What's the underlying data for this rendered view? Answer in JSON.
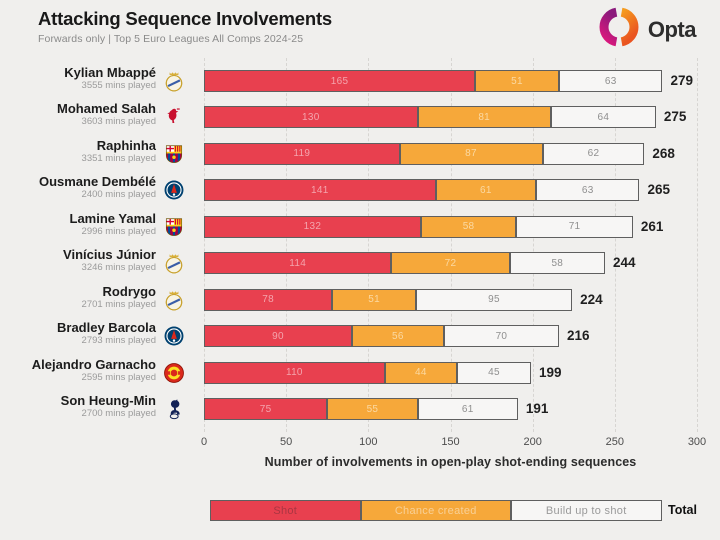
{
  "header": {
    "title": "Attacking Sequence Involvements",
    "subtitle": "Forwards only | Top 5 Euro Leagues All Comps 2024-25",
    "brand": "Opta"
  },
  "chart_data": {
    "type": "bar",
    "stacked": true,
    "orientation": "horizontal",
    "title": "Attacking Sequence Involvements",
    "subtitle": "Forwards only | Top 5 Euro Leagues All Comps 2024-25",
    "xlabel": "Number of involvements in open-play shot-ending sequences",
    "xlim": [
      0,
      300
    ],
    "x_ticks": [
      0,
      50,
      100,
      150,
      200,
      250,
      300
    ],
    "grid": "vertical-dashed",
    "series_names": [
      "Shot",
      "Chance created",
      "Build up to shot"
    ],
    "players": [
      {
        "name": "Kylian Mbappé",
        "mins": "3555 mins played",
        "club": "real-madrid",
        "shot": 165,
        "chance": 51,
        "build": 63,
        "total": 279
      },
      {
        "name": "Mohamed Salah",
        "mins": "3603 mins played",
        "club": "liverpool",
        "shot": 130,
        "chance": 81,
        "build": 64,
        "total": 275
      },
      {
        "name": "Raphinha",
        "mins": "3351 mins played",
        "club": "barcelona",
        "shot": 119,
        "chance": 87,
        "build": 62,
        "total": 268
      },
      {
        "name": "Ousmane Dembélé",
        "mins": "2400 mins played",
        "club": "psg",
        "shot": 141,
        "chance": 61,
        "build": 63,
        "total": 265
      },
      {
        "name": "Lamine Yamal",
        "mins": "2996 mins played",
        "club": "barcelona",
        "shot": 132,
        "chance": 58,
        "build": 71,
        "total": 261
      },
      {
        "name": "Vinícius Júnior",
        "mins": "3246 mins played",
        "club": "real-madrid",
        "shot": 114,
        "chance": 72,
        "build": 58,
        "total": 244
      },
      {
        "name": "Rodrygo",
        "mins": "2701 mins played",
        "club": "real-madrid",
        "shot": 78,
        "chance": 51,
        "build": 95,
        "total": 224
      },
      {
        "name": "Bradley Barcola",
        "mins": "2793 mins played",
        "club": "psg",
        "shot": 90,
        "chance": 56,
        "build": 70,
        "total": 216
      },
      {
        "name": "Alejandro Garnacho",
        "mins": "2595 mins played",
        "club": "man-united",
        "shot": 110,
        "chance": 44,
        "build": 45,
        "total": 199
      },
      {
        "name": "Son Heung-Min",
        "mins": "2700 mins played",
        "club": "tottenham",
        "shot": 75,
        "chance": 55,
        "build": 61,
        "total": 191
      }
    ]
  },
  "colors": {
    "shot": "#e8404f",
    "chance": "#f6a83a",
    "build": "#f7f6f5",
    "segment_border": "#5f5f5f",
    "shot_value_text": "#f4a4ad",
    "chance_value_text": "#fbd9a2",
    "build_value_text": "#8f8f8f",
    "background": "#f0efed",
    "brand_purple": "#8b1a7c",
    "brand_magenta": "#e0187d",
    "brand_orange_light": "#f59b1e",
    "brand_orange_dark": "#ea5420"
  },
  "legend": {
    "items": [
      {
        "label": "Shot",
        "fill": "#e8404f",
        "text_color": "#aa3642"
      },
      {
        "label": "Chance created",
        "fill": "#f6a83a",
        "text_color": "#f8d096"
      },
      {
        "label": "Build up to shot",
        "fill": "#f7f6f5",
        "text_color": "#9a9a9a"
      }
    ],
    "total_label": "Total"
  }
}
